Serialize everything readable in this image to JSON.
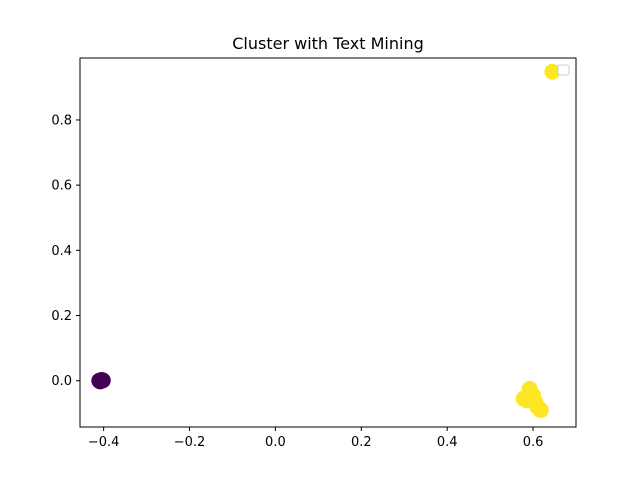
{
  "chart_data": {
    "type": "scatter",
    "title": "Cluster with Text Mining",
    "xlabel": "",
    "ylabel": "",
    "xlim": [
      -0.455,
      0.7
    ],
    "ylim": [
      -0.142,
      0.99
    ],
    "x_ticks": [
      -0.4,
      -0.2,
      0.0,
      0.2,
      0.4,
      0.6
    ],
    "x_tick_labels": [
      "−0.4",
      "−0.2",
      "0.0",
      "0.2",
      "0.4",
      "0.6"
    ],
    "y_ticks": [
      0.0,
      0.2,
      0.4,
      0.6,
      0.8
    ],
    "y_tick_labels": [
      "0.0",
      "0.2",
      "0.4",
      "0.6",
      "0.8"
    ],
    "grid": false,
    "legend": {
      "placement": "top-right",
      "entries": []
    },
    "series": [
      {
        "cluster": 0,
        "color": "#440154",
        "x": [
          -0.41,
          -0.405,
          -0.408,
          -0.402
        ],
        "y": [
          0.0,
          0.002,
          -0.002,
          0.001
        ]
      },
      {
        "cluster": 1,
        "color": "#fde725",
        "x": [
          0.645,
          0.578,
          0.585,
          0.592,
          0.6,
          0.605,
          0.61,
          0.618
        ],
        "y": [
          0.948,
          -0.055,
          -0.06,
          -0.025,
          -0.045,
          -0.065,
          -0.08,
          -0.09
        ]
      }
    ]
  }
}
